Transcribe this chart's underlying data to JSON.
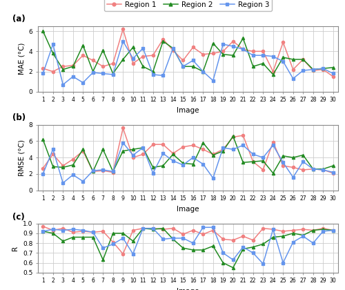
{
  "x": [
    1,
    2,
    3,
    4,
    5,
    6,
    7,
    8,
    9,
    10,
    11,
    12,
    13,
    14,
    15,
    16,
    17,
    18,
    19,
    20,
    21,
    22,
    23,
    24,
    25,
    26,
    27,
    28,
    29,
    30
  ],
  "mae_r1": [
    2.3,
    2.0,
    2.5,
    2.6,
    3.6,
    3.1,
    2.5,
    2.8,
    6.2,
    2.8,
    3.5,
    3.6,
    5.2,
    4.1,
    3.1,
    4.4,
    3.7,
    3.8,
    4.0,
    5.0,
    4.2,
    4.0,
    4.0,
    2.0,
    4.9,
    2.2,
    3.2,
    2.1,
    2.2,
    1.5
  ],
  "mae_r2": [
    6.0,
    3.8,
    2.2,
    2.5,
    4.6,
    2.0,
    4.1,
    1.8,
    3.2,
    4.4,
    2.5,
    2.0,
    5.0,
    4.3,
    2.5,
    2.5,
    2.0,
    4.8,
    3.7,
    3.6,
    5.3,
    2.5,
    2.8,
    1.7,
    3.4,
    3.2,
    3.2,
    2.2,
    2.3,
    2.4
  ],
  "mae_r3": [
    1.8,
    4.7,
    0.7,
    1.5,
    0.9,
    1.9,
    1.8,
    1.7,
    5.0,
    3.3,
    4.3,
    1.7,
    1.6,
    4.3,
    2.5,
    3.1,
    2.0,
    1.1,
    4.7,
    4.5,
    4.2,
    3.6,
    3.6,
    3.5,
    3.0,
    1.3,
    2.1,
    2.2,
    2.3,
    1.8
  ],
  "rmse_r1": [
    2.7,
    4.4,
    3.0,
    3.8,
    4.8,
    2.3,
    2.4,
    2.2,
    7.6,
    4.0,
    4.4,
    5.6,
    5.6,
    4.5,
    5.3,
    5.5,
    5.0,
    4.4,
    5.0,
    6.5,
    6.7,
    3.5,
    2.5,
    5.9,
    3.0,
    2.8,
    2.5,
    2.6,
    2.5,
    2.1
  ],
  "rmse_r2": [
    6.2,
    2.9,
    2.8,
    3.1,
    5.0,
    2.3,
    5.0,
    2.3,
    4.8,
    5.0,
    5.2,
    2.8,
    3.0,
    4.4,
    3.3,
    3.2,
    5.8,
    4.3,
    4.8,
    6.6,
    3.4,
    3.5,
    3.6,
    2.1,
    4.2,
    4.0,
    4.3,
    2.6,
    2.6,
    3.0
  ],
  "rmse_r3": [
    2.0,
    5.0,
    0.9,
    1.9,
    1.1,
    2.4,
    2.5,
    2.3,
    5.8,
    4.3,
    5.2,
    2.1,
    4.5,
    3.6,
    3.1,
    4.0,
    3.2,
    1.5,
    5.2,
    5.0,
    5.5,
    4.4,
    4.0,
    5.5,
    3.4,
    1.6,
    3.5,
    2.6,
    2.5,
    2.2
  ],
  "r_r1": [
    0.97,
    0.93,
    0.95,
    0.91,
    0.92,
    0.91,
    0.92,
    0.81,
    0.69,
    0.93,
    0.95,
    0.95,
    0.94,
    0.95,
    0.89,
    0.93,
    0.89,
    0.93,
    0.84,
    0.83,
    0.87,
    0.83,
    0.95,
    0.94,
    0.92,
    0.93,
    0.94,
    0.93,
    0.95,
    0.93
  ],
  "r_r2": [
    0.92,
    0.9,
    0.82,
    0.86,
    0.86,
    0.86,
    0.63,
    0.9,
    0.9,
    0.82,
    0.95,
    0.94,
    0.95,
    0.84,
    0.75,
    0.73,
    0.73,
    0.77,
    0.6,
    0.55,
    0.74,
    0.76,
    0.79,
    0.86,
    0.87,
    0.9,
    0.88,
    0.93,
    0.94,
    0.93
  ],
  "r_r3": [
    0.92,
    0.94,
    0.93,
    0.94,
    0.93,
    0.91,
    0.75,
    0.79,
    0.85,
    0.69,
    0.95,
    0.95,
    0.84,
    0.85,
    0.85,
    0.8,
    0.96,
    0.96,
    0.7,
    0.63,
    0.76,
    0.7,
    0.59,
    0.94,
    0.6,
    0.81,
    0.87,
    0.8,
    0.92,
    0.93
  ],
  "color_r1": "#F08080",
  "color_r2": "#228B22",
  "color_r3": "#6495ED",
  "bg_color": "#ffffff",
  "grid_color": "#cccccc",
  "ylabel_a": "MAE (°C)",
  "ylabel_b": "RMSE (°C)",
  "ylabel_c": "R",
  "xlabel": "Image",
  "ylim_a": [
    0,
    6.5
  ],
  "ylim_b": [
    0,
    8
  ],
  "ylim_c": [
    0.5,
    1.0
  ],
  "yticks_a": [
    0,
    2,
    4,
    6
  ],
  "yticks_b": [
    0,
    2,
    4,
    6,
    8
  ],
  "yticks_c": [
    0.5,
    0.6,
    0.7,
    0.8,
    0.9,
    1.0
  ],
  "label_r1": "Region 1",
  "label_r2": "Region 2",
  "label_r3": "Region 3",
  "panel_labels": [
    "(a)",
    "(b)",
    "(c)"
  ]
}
